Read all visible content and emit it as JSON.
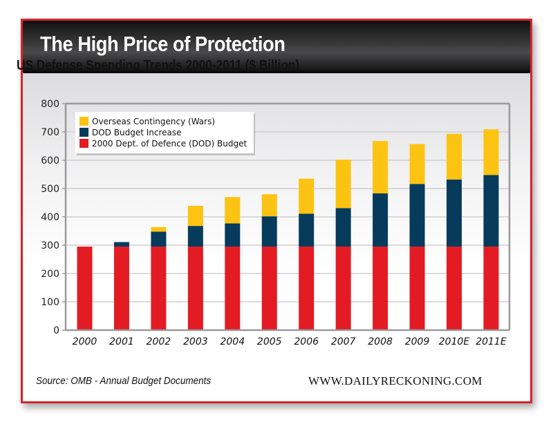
{
  "header": {
    "title": "The High Price of Protection",
    "subtitle": "US Defense Spending Trends 2000-2011 ($ Billion)"
  },
  "footer": {
    "source": "Source: OMB - Annual Budget Documents",
    "site": "WWW.DAILYRECKONING.COM"
  },
  "colors": {
    "frame": "#d8232a",
    "base_budget": "#e31b23",
    "budget_increase": "#063b5c",
    "overseas": "#fdc312"
  },
  "chart_data": {
    "type": "bar",
    "stacked": true,
    "title": "US Defense Spending Trends 2000-2011 ($ Billion)",
    "xlabel": "",
    "ylabel": "",
    "ylim": [
      0,
      800
    ],
    "yticks": [
      0,
      100,
      200,
      300,
      400,
      500,
      600,
      700,
      800
    ],
    "grid": true,
    "legend_position": "top-left",
    "categories": [
      "2000",
      "2001",
      "2002",
      "2003",
      "2004",
      "2005",
      "2006",
      "2007",
      "2008",
      "2009",
      "2010E",
      "2011E"
    ],
    "series": [
      {
        "name": "2000 Dept. of Defence (DOD) Budget",
        "color": "#e31b23",
        "values": [
          295,
          295,
          295,
          295,
          295,
          295,
          295,
          295,
          295,
          295,
          295,
          295
        ]
      },
      {
        "name": "DOD Budget Increase",
        "color": "#063b5c",
        "values": [
          0,
          16,
          53,
          73,
          82,
          107,
          116,
          136,
          188,
          221,
          237,
          253
        ]
      },
      {
        "name": "Overseas Contingency (Wars)",
        "color": "#fdc312",
        "values": [
          0,
          0,
          16,
          71,
          93,
          78,
          124,
          171,
          185,
          141,
          161,
          161
        ]
      }
    ],
    "legend_order": [
      "Overseas Contingency (Wars)",
      "DOD Budget Increase",
      "2000 Dept. of Defence (DOD) Budget"
    ]
  }
}
